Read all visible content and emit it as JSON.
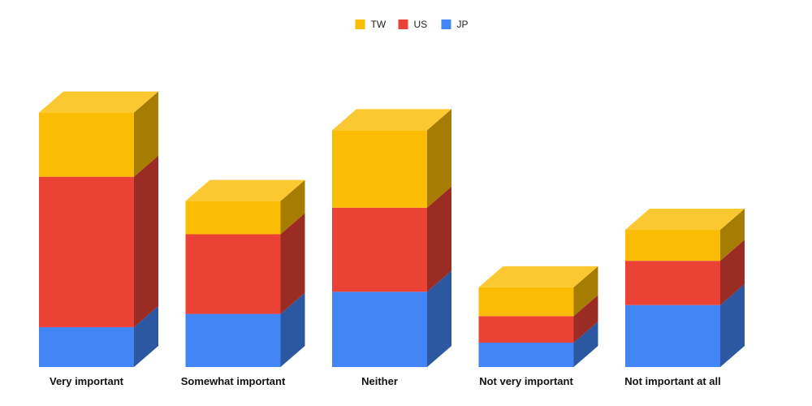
{
  "chart_data": {
    "type": "bar",
    "stacked": true,
    "three_d": true,
    "title": "",
    "xlabel": "",
    "ylabel": "",
    "ylim": [
      0,
      60
    ],
    "grid": false,
    "legend_position": "top-center",
    "categories": [
      "Very important",
      "Somewhat important",
      "Neither",
      "Not very important",
      "Not important at all"
    ],
    "series": [
      {
        "name": "JP",
        "color": "#4285F4",
        "values": [
          9,
          12,
          17,
          5.5,
          14
        ]
      },
      {
        "name": "US",
        "color": "#EA4335",
        "values": [
          34,
          18,
          19,
          6,
          10
        ]
      },
      {
        "name": "TW",
        "color": "#FBBC04",
        "values": [
          14.5,
          7.5,
          17.5,
          6.5,
          7
        ]
      }
    ],
    "legend_order": [
      "TW",
      "US",
      "JP"
    ]
  }
}
